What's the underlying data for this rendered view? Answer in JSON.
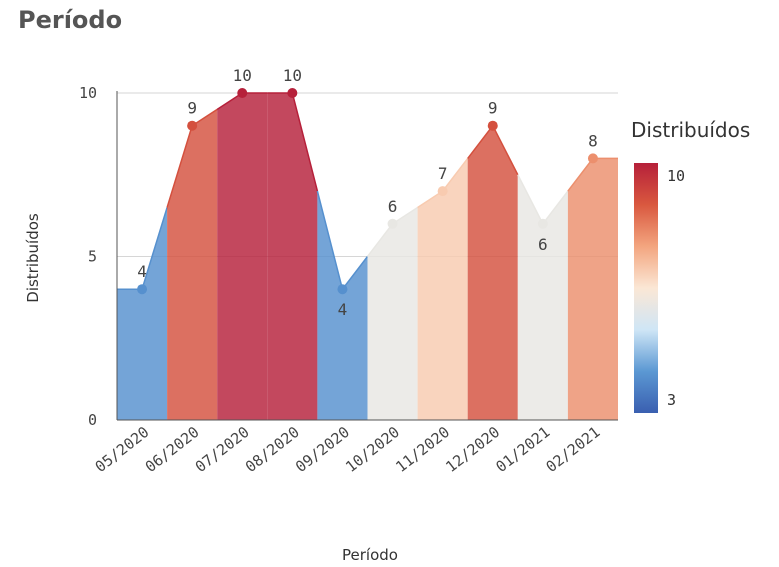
{
  "chart_data": {
    "type": "area",
    "title": "Período",
    "xlabel": "Período",
    "ylabel": "Distribuídos",
    "categories": [
      "05/2020",
      "06/2020",
      "07/2020",
      "08/2020",
      "09/2020",
      "10/2020",
      "11/2020",
      "12/2020",
      "01/2021",
      "02/2021"
    ],
    "values": [
      4,
      9,
      10,
      10,
      4,
      6,
      7,
      9,
      6,
      8
    ],
    "data_labels": [
      "4",
      "9",
      "10",
      "10",
      "4",
      "6",
      "7",
      "9",
      "6",
      "8"
    ],
    "ylim": [
      0,
      10
    ],
    "yticks": [
      0,
      5,
      10
    ],
    "ytick_labels": [
      "0",
      "5",
      "10"
    ],
    "grid": true,
    "legend": {
      "title": "Distribuídos",
      "min_label": "3",
      "max_label": "10",
      "min": 3,
      "max": 10,
      "position": "right",
      "gradient": [
        "#3a5fb0",
        "#5b98d3",
        "#cfe6f6",
        "#fbe7d5",
        "#f3a57f",
        "#d9583f",
        "#b6203a"
      ]
    }
  }
}
